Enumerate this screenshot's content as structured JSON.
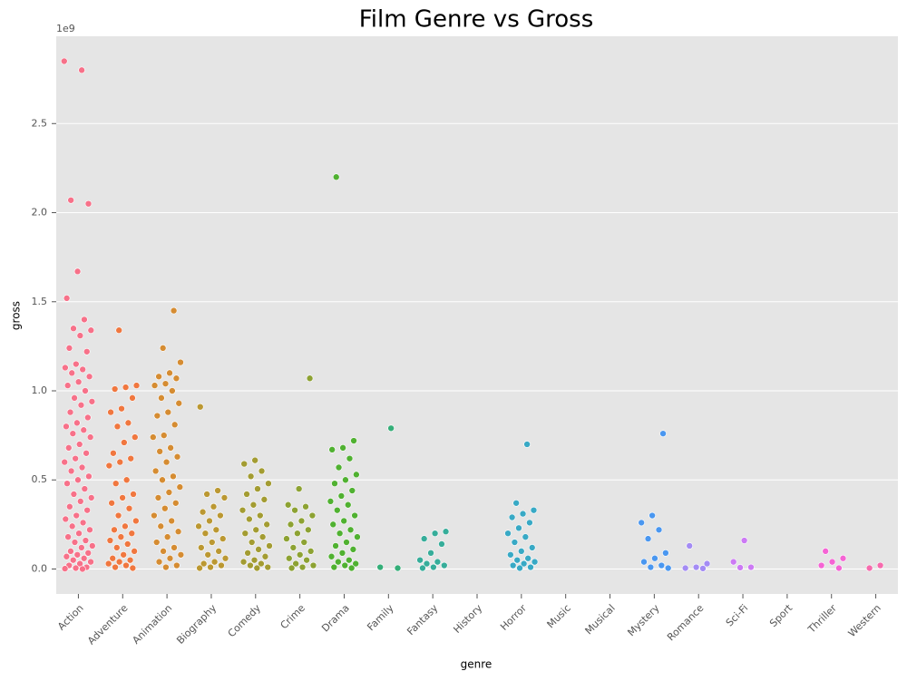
{
  "chart_data": {
    "type": "strip",
    "title": "Film Genre vs Gross",
    "x_label": "genre",
    "y_label": "gross",
    "y_offset_label": "1e9",
    "categories": [
      "Action",
      "Adventure",
      "Animation",
      "Biography",
      "Comedy",
      "Crime",
      "Drama",
      "Family",
      "Fantasy",
      "History",
      "Horror",
      "Music",
      "Musical",
      "Mystery",
      "Romance",
      "Sci-Fi",
      "Sport",
      "Thriller",
      "Western"
    ],
    "colors": [
      "#f77189",
      "#f0773f",
      "#d58c32",
      "#bb9832",
      "#a39c32",
      "#8da233",
      "#50b131",
      "#34ae78",
      "#36ad9a",
      "#36aab0",
      "#38a9c5",
      "#3aa5dd",
      "#3ba3ec",
      "#4a97f0",
      "#a48cf4",
      "#cc7af4",
      "#f45cd9",
      "#f564d4",
      "#f66bad"
    ],
    "values": [
      [
        2.85,
        2.8,
        2.07,
        2.05,
        1.67,
        1.52,
        1.4,
        1.35,
        1.34,
        1.31,
        1.24,
        1.22,
        1.15,
        1.13,
        1.12,
        1.1,
        1.08,
        1.05,
        1.03,
        1.0,
        0.96,
        0.94,
        0.92,
        0.88,
        0.85,
        0.82,
        0.8,
        0.78,
        0.76,
        0.74,
        0.7,
        0.68,
        0.65,
        0.62,
        0.6,
        0.57,
        0.55,
        0.52,
        0.5,
        0.48,
        0.45,
        0.42,
        0.4,
        0.38,
        0.35,
        0.33,
        0.3,
        0.28,
        0.26,
        0.24,
        0.22,
        0.2,
        0.18,
        0.16,
        0.15,
        0.13,
        0.12,
        0.1,
        0.09,
        0.08,
        0.07,
        0.06,
        0.05,
        0.04,
        0.03,
        0.02,
        0.01,
        0.005,
        0.002,
        0.0
      ],
      [
        1.34,
        1.03,
        1.02,
        1.01,
        0.96,
        0.9,
        0.88,
        0.82,
        0.8,
        0.74,
        0.71,
        0.65,
        0.62,
        0.6,
        0.58,
        0.5,
        0.48,
        0.42,
        0.4,
        0.37,
        0.34,
        0.3,
        0.27,
        0.24,
        0.22,
        0.2,
        0.18,
        0.16,
        0.14,
        0.12,
        0.1,
        0.08,
        0.06,
        0.05,
        0.04,
        0.03,
        0.02,
        0.01,
        0.005
      ],
      [
        1.45,
        1.24,
        1.16,
        1.1,
        1.08,
        1.07,
        1.04,
        1.03,
        1.0,
        0.96,
        0.93,
        0.88,
        0.86,
        0.81,
        0.75,
        0.74,
        0.68,
        0.66,
        0.63,
        0.6,
        0.55,
        0.52,
        0.5,
        0.46,
        0.43,
        0.4,
        0.37,
        0.34,
        0.3,
        0.27,
        0.24,
        0.21,
        0.18,
        0.15,
        0.12,
        0.1,
        0.08,
        0.06,
        0.04,
        0.02,
        0.01
      ],
      [
        0.91,
        0.44,
        0.42,
        0.4,
        0.35,
        0.32,
        0.3,
        0.27,
        0.24,
        0.22,
        0.2,
        0.17,
        0.15,
        0.12,
        0.1,
        0.08,
        0.06,
        0.04,
        0.03,
        0.02,
        0.01,
        0.005
      ],
      [
        0.61,
        0.59,
        0.55,
        0.52,
        0.48,
        0.45,
        0.42,
        0.39,
        0.36,
        0.33,
        0.3,
        0.28,
        0.25,
        0.22,
        0.2,
        0.18,
        0.15,
        0.13,
        0.11,
        0.09,
        0.07,
        0.05,
        0.04,
        0.03,
        0.02,
        0.01,
        0.005
      ],
      [
        1.07,
        0.45,
        0.36,
        0.35,
        0.33,
        0.3,
        0.27,
        0.25,
        0.22,
        0.2,
        0.17,
        0.15,
        0.12,
        0.1,
        0.08,
        0.06,
        0.05,
        0.03,
        0.02,
        0.01,
        0.005
      ],
      [
        2.2,
        0.72,
        0.68,
        0.67,
        0.62,
        0.57,
        0.53,
        0.5,
        0.48,
        0.44,
        0.41,
        0.38,
        0.36,
        0.33,
        0.3,
        0.27,
        0.25,
        0.22,
        0.2,
        0.18,
        0.15,
        0.13,
        0.11,
        0.09,
        0.07,
        0.05,
        0.04,
        0.03,
        0.02,
        0.01,
        0.005
      ],
      [
        0.79,
        0.01,
        0.005
      ],
      [
        0.21,
        0.2,
        0.17,
        0.14,
        0.09,
        0.05,
        0.04,
        0.03,
        0.02,
        0.01,
        0.005
      ],
      [],
      [
        0.7,
        0.37,
        0.33,
        0.31,
        0.29,
        0.26,
        0.23,
        0.2,
        0.18,
        0.15,
        0.12,
        0.1,
        0.08,
        0.06,
        0.05,
        0.04,
        0.03,
        0.02,
        0.01,
        0.005
      ],
      [],
      [],
      [
        0.76,
        0.3,
        0.26,
        0.22,
        0.17,
        0.09,
        0.06,
        0.04,
        0.02,
        0.01,
        0.005
      ],
      [
        0.13,
        0.03,
        0.01,
        0.005,
        0.003
      ],
      [
        0.16,
        0.04,
        0.01,
        0.008
      ],
      [],
      [
        0.1,
        0.06,
        0.04,
        0.02,
        0.005
      ],
      [
        0.02,
        0.005
      ]
    ],
    "ylim": [
      -0.14,
      2.99
    ],
    "yticks": [
      {
        "value": 0,
        "label": "0.0"
      },
      0.5,
      {
        "value": 1,
        "label": "1.0"
      },
      1.5,
      {
        "value": 2,
        "label": "2.0"
      },
      2.5
    ],
    "grid": true
  }
}
